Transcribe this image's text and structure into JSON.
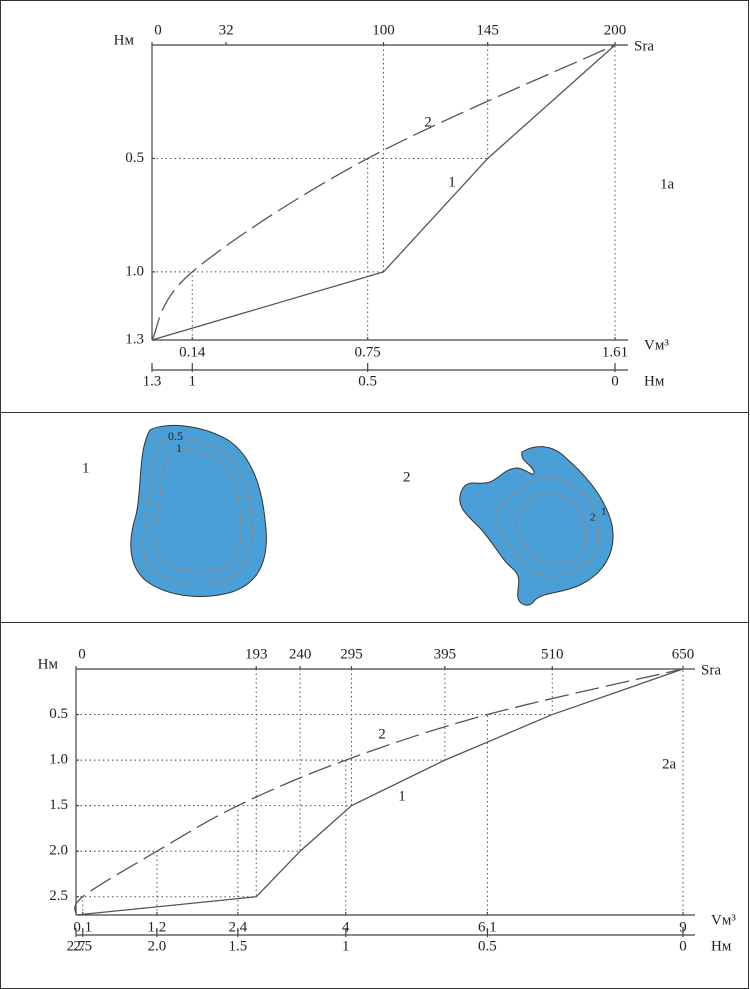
{
  "chart_data": [
    {
      "type": "line",
      "panel_label": "1a",
      "y_label": "Hм",
      "top_axis": {
        "label": "Sra",
        "xlim": [
          0,
          200
        ],
        "xticks": [
          0,
          32,
          100,
          145,
          200
        ]
      },
      "xlabel": "Vм³",
      "xlim": [
        0,
        1.61
      ],
      "xticks": [
        0.14,
        0.75,
        1.61
      ],
      "ylim": [
        0,
        1.3
      ],
      "yticks": [
        0.5,
        {
          "value": 1,
          "label": "1.0"
        },
        1.3
      ],
      "depth_axis": {
        "label": "Hм",
        "ticks": [
          1.3,
          1,
          0.5,
          0
        ]
      },
      "series": [
        {
          "name": "1",
          "color": "#555555",
          "axis": "top",
          "dash": false,
          "smooth": false,
          "x": [
            0,
            100,
            145,
            200
          ],
          "values": [
            1.3,
            1.0,
            0.5,
            0
          ]
        },
        {
          "name": "2",
          "color": "#555555",
          "axis": "bottom",
          "dash": true,
          "smooth": true,
          "x": [
            0,
            0.14,
            0.75,
            1.61
          ],
          "values": [
            1.3,
            1.0,
            0.5,
            0
          ]
        }
      ]
    },
    {
      "type": "line",
      "panel_label": "2a",
      "y_label": "Hм",
      "top_axis": {
        "label": "Sra",
        "xlim": [
          0,
          650
        ],
        "xticks": [
          0,
          193,
          240,
          295,
          395,
          510,
          650
        ]
      },
      "xlabel": "Vм³",
      "xlim": [
        0,
        9
      ],
      "xticks": [
        0.1,
        1.2,
        2.4,
        4,
        6.1,
        9
      ],
      "ylim": [
        0,
        2.7
      ],
      "yticks": [
        0.5,
        {
          "value": 1,
          "label": "1.0"
        },
        1.5,
        {
          "value": 2,
          "label": "2.0"
        },
        2.5
      ],
      "depth_axis": {
        "label": "Hм",
        "ticks": [
          2.7,
          2.5,
          {
            "value": 2,
            "label": "2.0"
          },
          1.5,
          1,
          0.5,
          0
        ]
      },
      "series": [
        {
          "name": "1",
          "color": "#555555",
          "axis": "top",
          "dash": false,
          "smooth": false,
          "x": [
            0,
            193,
            240,
            295,
            395,
            510,
            650
          ],
          "values": [
            2.7,
            2.5,
            2.0,
            1.5,
            1.0,
            0.5,
            0
          ]
        },
        {
          "name": "2",
          "color": "#555555",
          "axis": "bottom",
          "dash": true,
          "smooth": true,
          "x": [
            0,
            0.1,
            1.2,
            2.4,
            4,
            6.1,
            9
          ],
          "values": [
            2.7,
            2.5,
            2.0,
            1.5,
            1.0,
            0.5,
            0
          ]
        }
      ]
    }
  ],
  "lakes": [
    {
      "label": "1",
      "contours": [
        0.5,
        1
      ]
    },
    {
      "label": "2",
      "contours": [
        2,
        1
      ]
    }
  ]
}
